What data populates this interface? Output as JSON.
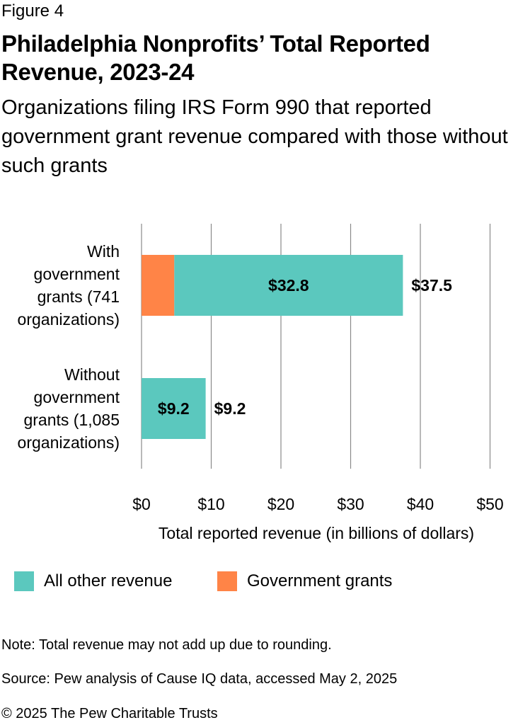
{
  "figure_label": "Figure 4",
  "title": "Philadelphia Nonprofits’ Total Reported Revenue, 2023-24",
  "subtitle": "Organizations filing IRS Form 990 that reported government grant revenue compared with those without such grants",
  "colors": {
    "all_other_revenue": "#5bc8be",
    "government_grants": "#ff8447",
    "grid": "#8a8a8a"
  },
  "chart_data": {
    "type": "bar",
    "orientation": "horizontal",
    "stacked": true,
    "categories": [
      [
        "With",
        "government",
        "grants (741",
        "organizations)"
      ],
      [
        "Without",
        "government",
        "grants (1,085",
        "organizations)"
      ]
    ],
    "series": [
      {
        "name": "Government grants",
        "color": "#ff8447",
        "values": [
          4.7,
          0
        ],
        "labels": [
          "",
          ""
        ]
      },
      {
        "name": "All other revenue",
        "color": "#5bc8be",
        "values": [
          32.8,
          9.2
        ],
        "labels": [
          "$32.8",
          "$9.2"
        ]
      }
    ],
    "totals": [
      37.5,
      9.2
    ],
    "total_labels": [
      "$37.5",
      "$9.2"
    ],
    "xlabel": "Total reported revenue (in billions of dollars)",
    "xlim": [
      0,
      50
    ],
    "xticks": [
      0,
      10,
      20,
      30,
      40,
      50
    ],
    "xtick_labels": [
      "$0",
      "$10",
      "$20",
      "$30",
      "$40",
      "$50"
    ],
    "grid": "vertical"
  },
  "legend": [
    {
      "label": "All other revenue",
      "color": "#5bc8be"
    },
    {
      "label": "Government grants",
      "color": "#ff8447"
    }
  ],
  "note": "Note: Total revenue may not add up due to rounding.",
  "source": "Source: Pew analysis of Cause IQ data, accessed May 2, 2025",
  "copyright": "© 2025 The Pew Charitable Trusts"
}
